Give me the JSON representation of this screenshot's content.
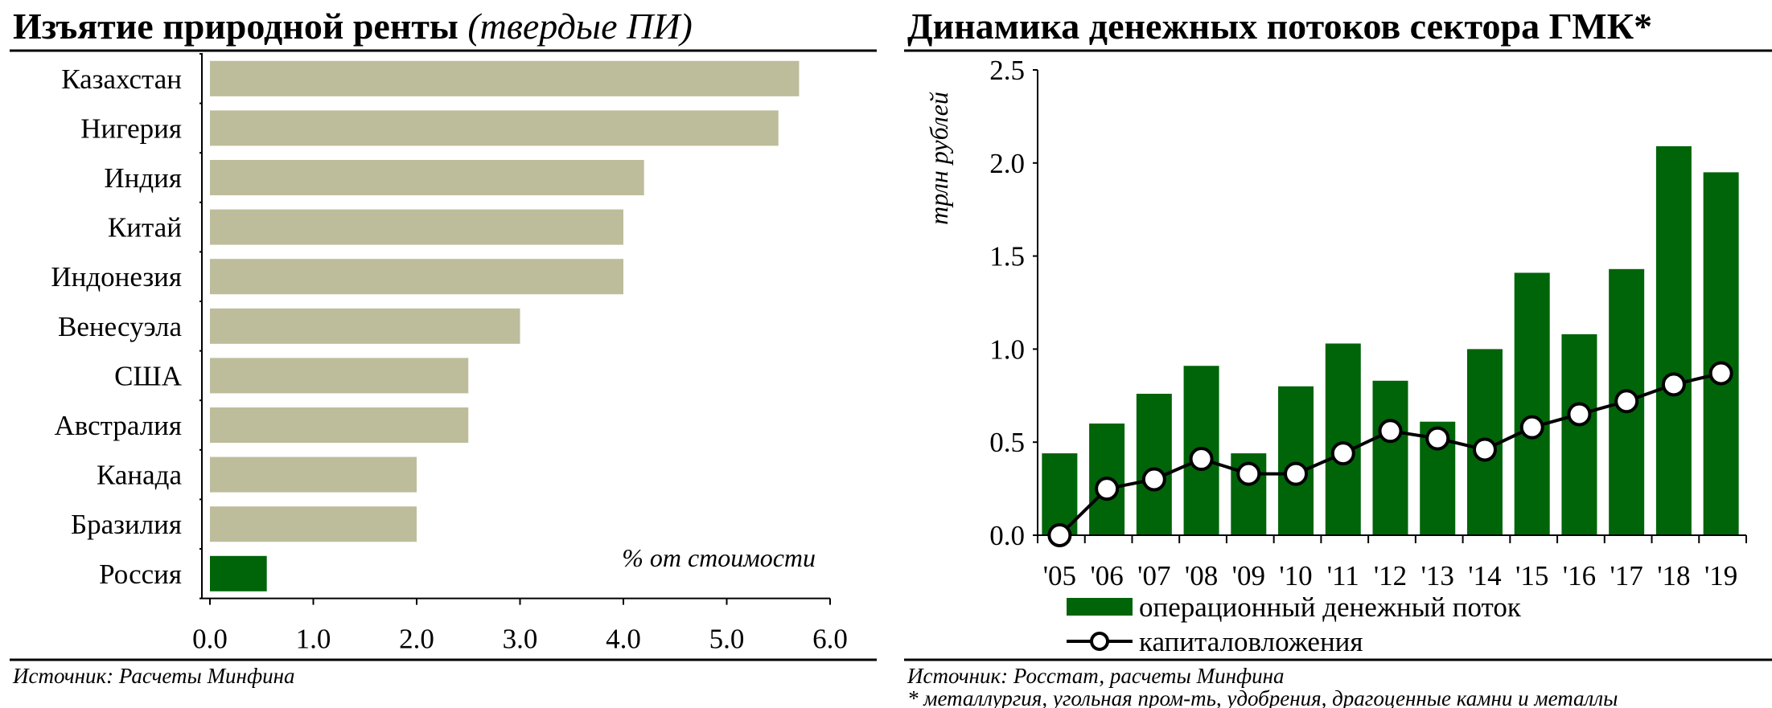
{
  "colors": {
    "khaki": "#bdbd9b",
    "green": "#006409",
    "axis": "#000000"
  },
  "chart_data": [
    {
      "type": "bar",
      "orientation": "horizontal",
      "title": "Изъятие природной ренты",
      "subtitle": "(твердые ПИ)",
      "unit_label": "% от стоимости",
      "source": "Источник: Расчеты Минфина",
      "categories": [
        "Казахстан",
        "Нигерия",
        "Индия",
        "Китай",
        "Индонезия",
        "Венесуэла",
        "США",
        "Австралия",
        "Канада",
        "Бразилия",
        "Россия"
      ],
      "values": [
        5.7,
        5.5,
        4.2,
        4.0,
        4.0,
        3.0,
        2.5,
        2.5,
        2.0,
        2.0,
        0.55
      ],
      "highlight": "Россия",
      "xlim": [
        0,
        6
      ],
      "xticks": [
        "0.0",
        "1.0",
        "2.0",
        "3.0",
        "4.0",
        "5.0",
        "6.0"
      ],
      "grid": false
    },
    {
      "type": "bar+line",
      "title": "Динамика денежных потоков сектора ГМК*",
      "ylabel": "трлн рублей",
      "ylim": [
        0,
        2.5
      ],
      "yticks": [
        "0.0",
        "0.5",
        "1.0",
        "1.5",
        "2.0",
        "2.5"
      ],
      "categories": [
        "'05",
        "'06",
        "'07",
        "'08",
        "'09",
        "'10",
        "'11",
        "'12",
        "'13",
        "'14",
        "'15",
        "'16",
        "'17",
        "'18",
        "'19"
      ],
      "series": [
        {
          "name": "операционный денежный поток",
          "kind": "bar",
          "values": [
            0.44,
            0.6,
            0.76,
            0.91,
            0.44,
            0.8,
            1.03,
            0.83,
            0.61,
            1.0,
            1.41,
            1.08,
            1.43,
            2.09,
            1.95
          ]
        },
        {
          "name": "капиталовложения",
          "kind": "line",
          "values": [
            0.0,
            0.25,
            0.3,
            0.41,
            0.33,
            0.33,
            0.44,
            0.56,
            0.52,
            0.46,
            0.58,
            0.65,
            0.72,
            0.81,
            0.87
          ]
        }
      ],
      "legend_position": "bottom",
      "grid": false,
      "source": "Источник: Росстат, расчеты Минфина",
      "footnote": "* металлургия, угольная пром-ть, удобрения, драгоценные камни и металлы"
    }
  ]
}
